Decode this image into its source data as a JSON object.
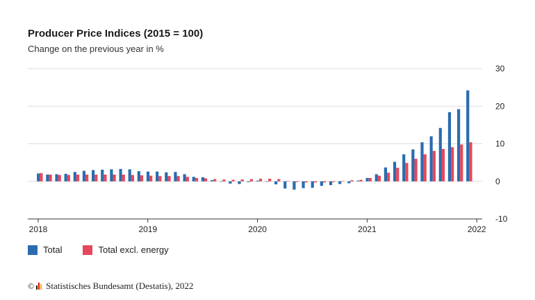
{
  "source_text": "Statistisches Bundesamt (Destatis), 2022",
  "copyright_symbol": "©",
  "logo_colors": [
    "#1a1a1a",
    "#e30613",
    "#f5b400"
  ],
  "chart_data": {
    "type": "bar",
    "title": "Producer Price Indices (2015 = 100)",
    "subtitle": "Change on the previous year in %",
    "xlabel": "",
    "ylabel": "",
    "ylim": [
      -10,
      30
    ],
    "yticks": [
      30,
      20,
      10,
      0,
      -10
    ],
    "y_axis_position": "right",
    "grid": true,
    "legend_position": "bottom-left",
    "x_tick_labels": [
      "2018",
      "2019",
      "2020",
      "2021",
      "2022"
    ],
    "categories": [
      "2018-01",
      "2018-02",
      "2018-03",
      "2018-04",
      "2018-05",
      "2018-06",
      "2018-07",
      "2018-08",
      "2018-09",
      "2018-10",
      "2018-11",
      "2018-12",
      "2019-01",
      "2019-02",
      "2019-03",
      "2019-04",
      "2019-05",
      "2019-06",
      "2019-07",
      "2019-08",
      "2019-09",
      "2019-10",
      "2019-11",
      "2019-12",
      "2020-01",
      "2020-02",
      "2020-03",
      "2020-04",
      "2020-05",
      "2020-06",
      "2020-07",
      "2020-08",
      "2020-09",
      "2020-10",
      "2020-11",
      "2020-12",
      "2021-01",
      "2021-02",
      "2021-03",
      "2021-04",
      "2021-05",
      "2021-06",
      "2021-07",
      "2021-08",
      "2021-09",
      "2021-10",
      "2021-11",
      "2021-12"
    ],
    "series": [
      {
        "name": "Total",
        "color": "#2a6cb0",
        "values": [
          2.1,
          1.8,
          1.9,
          2.0,
          2.5,
          2.8,
          3.0,
          3.1,
          3.2,
          3.3,
          3.2,
          2.7,
          2.6,
          2.6,
          2.4,
          2.5,
          1.9,
          1.2,
          1.1,
          0.3,
          -0.1,
          -0.6,
          -0.7,
          -0.2,
          0.2,
          -0.1,
          -0.8,
          -1.9,
          -2.2,
          -1.8,
          -1.7,
          -1.2,
          -1.0,
          -0.7,
          -0.5,
          0.2,
          0.9,
          1.9,
          3.7,
          5.2,
          7.2,
          8.5,
          10.4,
          12.0,
          14.2,
          18.4,
          19.2,
          24.2
        ]
      },
      {
        "name": "Total excl. energy",
        "color": "#e5485a",
        "values": [
          2.2,
          1.8,
          1.7,
          1.7,
          1.8,
          1.8,
          1.8,
          1.8,
          1.8,
          1.8,
          1.7,
          1.6,
          1.5,
          1.4,
          1.4,
          1.4,
          1.2,
          0.9,
          0.8,
          0.6,
          0.5,
          0.4,
          0.5,
          0.6,
          0.7,
          0.7,
          0.6,
          0.1,
          -0.2,
          -0.3,
          -0.3,
          -0.3,
          -0.2,
          0.1,
          0.3,
          0.4,
          0.9,
          1.5,
          2.3,
          3.6,
          4.9,
          6.0,
          7.2,
          8.1,
          8.6,
          9.1,
          9.8,
          10.4
        ]
      }
    ]
  }
}
